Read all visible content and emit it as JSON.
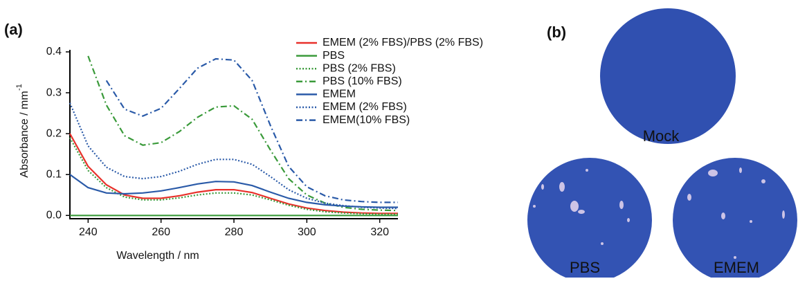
{
  "chart_data": {
    "type": "line",
    "panel_label": "(a)",
    "x_label": "Wavelength / nm",
    "y_label": "Absorbance / mm",
    "y_label_sup": "-1",
    "x": [
      235,
      240,
      245,
      250,
      255,
      260,
      265,
      270,
      275,
      280,
      285,
      290,
      295,
      300,
      305,
      310,
      315,
      320,
      325
    ],
    "xlim": [
      235,
      325
    ],
    "xticks": [
      240,
      260,
      280,
      300,
      320
    ],
    "ylim": [
      -0.008,
      0.405
    ],
    "yticks": [
      {
        "value": 0,
        "label": "0.0"
      },
      0.1,
      0.2,
      0.3,
      0.4
    ],
    "series": [
      {
        "name": "EMEM (2% FBS)/PBS (2% FBS)",
        "color": "#e8302a",
        "dash": "solid",
        "values": [
          0.2,
          0.12,
          0.075,
          0.05,
          0.042,
          0.042,
          0.048,
          0.057,
          0.063,
          0.063,
          0.056,
          0.042,
          0.028,
          0.018,
          0.012,
          0.008,
          0.006,
          0.005,
          0.005
        ]
      },
      {
        "name": "PBS",
        "color": "#3a9a3a",
        "dash": "solid",
        "values": [
          0,
          0,
          0,
          0,
          0,
          0,
          0,
          0,
          0,
          0,
          0,
          0,
          0,
          0,
          0,
          0,
          0,
          0,
          0
        ]
      },
      {
        "name": "PBS (2% FBS)",
        "color": "#3a9a3a",
        "dash": "dotted",
        "values": [
          0.19,
          0.11,
          0.068,
          0.045,
          0.038,
          0.038,
          0.043,
          0.05,
          0.055,
          0.055,
          0.05,
          0.038,
          0.025,
          0.015,
          0.009,
          0.006,
          0.004,
          0.003,
          0.003
        ]
      },
      {
        "name": "PBS (10% FBS)",
        "color": "#3a9a3a",
        "dash": "dashdot",
        "values": [
          null,
          0.39,
          0.27,
          0.195,
          0.172,
          0.178,
          0.205,
          0.24,
          0.265,
          0.268,
          0.235,
          0.16,
          0.09,
          0.05,
          0.03,
          0.02,
          0.015,
          0.013,
          0.012
        ]
      },
      {
        "name": "EMEM",
        "color": "#2a5aa8",
        "dash": "solid",
        "values": [
          0.1,
          0.068,
          0.055,
          0.053,
          0.055,
          0.06,
          0.068,
          0.077,
          0.083,
          0.082,
          0.073,
          0.057,
          0.042,
          0.032,
          0.026,
          0.023,
          0.021,
          0.02,
          0.02
        ]
      },
      {
        "name": "EMEM (2% FBS)",
        "color": "#2a5aa8",
        "dash": "dotted",
        "values": [
          0.275,
          0.17,
          0.118,
          0.095,
          0.09,
          0.095,
          0.108,
          0.125,
          0.137,
          0.137,
          0.125,
          0.095,
          0.063,
          0.042,
          0.03,
          0.024,
          0.02,
          0.018,
          0.017
        ]
      },
      {
        "name": "EMEM(10% FBS)",
        "color": "#2a5aa8",
        "dash": "dashdot",
        "values": [
          null,
          null,
          0.33,
          0.26,
          0.243,
          0.262,
          0.31,
          0.36,
          0.383,
          0.38,
          0.33,
          0.22,
          0.12,
          0.07,
          0.048,
          0.038,
          0.034,
          0.032,
          0.032
        ]
      }
    ]
  },
  "panel_b": {
    "label": "(b)",
    "wells": [
      "Mock",
      "PBS",
      "EMEM"
    ]
  }
}
